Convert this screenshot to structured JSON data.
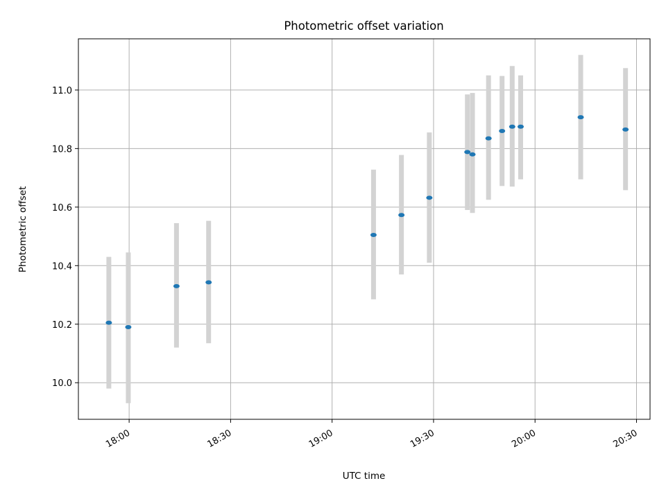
{
  "chart_data": {
    "type": "scatter",
    "title": "Photometric offset variation",
    "xlabel": "UTC time",
    "ylabel": "Photometric offset",
    "x_axis": "time",
    "xlim": [
      "17:45",
      "20:34"
    ],
    "ylim": [
      9.875,
      11.175
    ],
    "xticks": [
      "18:00",
      "18:30",
      "19:00",
      "19:30",
      "20:00",
      "20:30"
    ],
    "yticks": [
      "10.0",
      "10.2",
      "10.4",
      "10.6",
      "10.8",
      "11.0"
    ],
    "grid": true,
    "colors": {
      "point": "#1f77b4",
      "errorbar": "#d3d3d3",
      "grid": "#b0b0b0"
    },
    "points": [
      {
        "x": "17:54",
        "y": 10.205,
        "yerr_low": 9.98,
        "yerr_high": 10.43
      },
      {
        "x": "17:59:45",
        "y": 10.19,
        "yerr_low": 9.93,
        "yerr_high": 10.445
      },
      {
        "x": "18:14",
        "y": 10.33,
        "yerr_low": 10.12,
        "yerr_high": 10.545
      },
      {
        "x": "18:23:30",
        "y": 10.343,
        "yerr_low": 10.135,
        "yerr_high": 10.553
      },
      {
        "x": "19:12:15",
        "y": 10.505,
        "yerr_low": 10.285,
        "yerr_high": 10.728
      },
      {
        "x": "19:20:30",
        "y": 10.573,
        "yerr_low": 10.37,
        "yerr_high": 10.778
      },
      {
        "x": "19:28:45",
        "y": 10.632,
        "yerr_low": 10.41,
        "yerr_high": 10.855
      },
      {
        "x": "19:40",
        "y": 10.788,
        "yerr_low": 10.59,
        "yerr_high": 10.985
      },
      {
        "x": "19:41:30",
        "y": 10.78,
        "yerr_low": 10.58,
        "yerr_high": 10.99
      },
      {
        "x": "19:46:15",
        "y": 10.835,
        "yerr_low": 10.625,
        "yerr_high": 11.05
      },
      {
        "x": "19:50:15",
        "y": 10.86,
        "yerr_low": 10.672,
        "yerr_high": 11.048
      },
      {
        "x": "19:53:15",
        "y": 10.875,
        "yerr_low": 10.67,
        "yerr_high": 11.082
      },
      {
        "x": "19:55:45",
        "y": 10.875,
        "yerr_low": 10.695,
        "yerr_high": 11.05
      },
      {
        "x": "20:13:30",
        "y": 10.907,
        "yerr_low": 10.695,
        "yerr_high": 11.12
      },
      {
        "x": "20:26:45",
        "y": 10.865,
        "yerr_low": 10.658,
        "yerr_high": 11.075
      }
    ]
  }
}
